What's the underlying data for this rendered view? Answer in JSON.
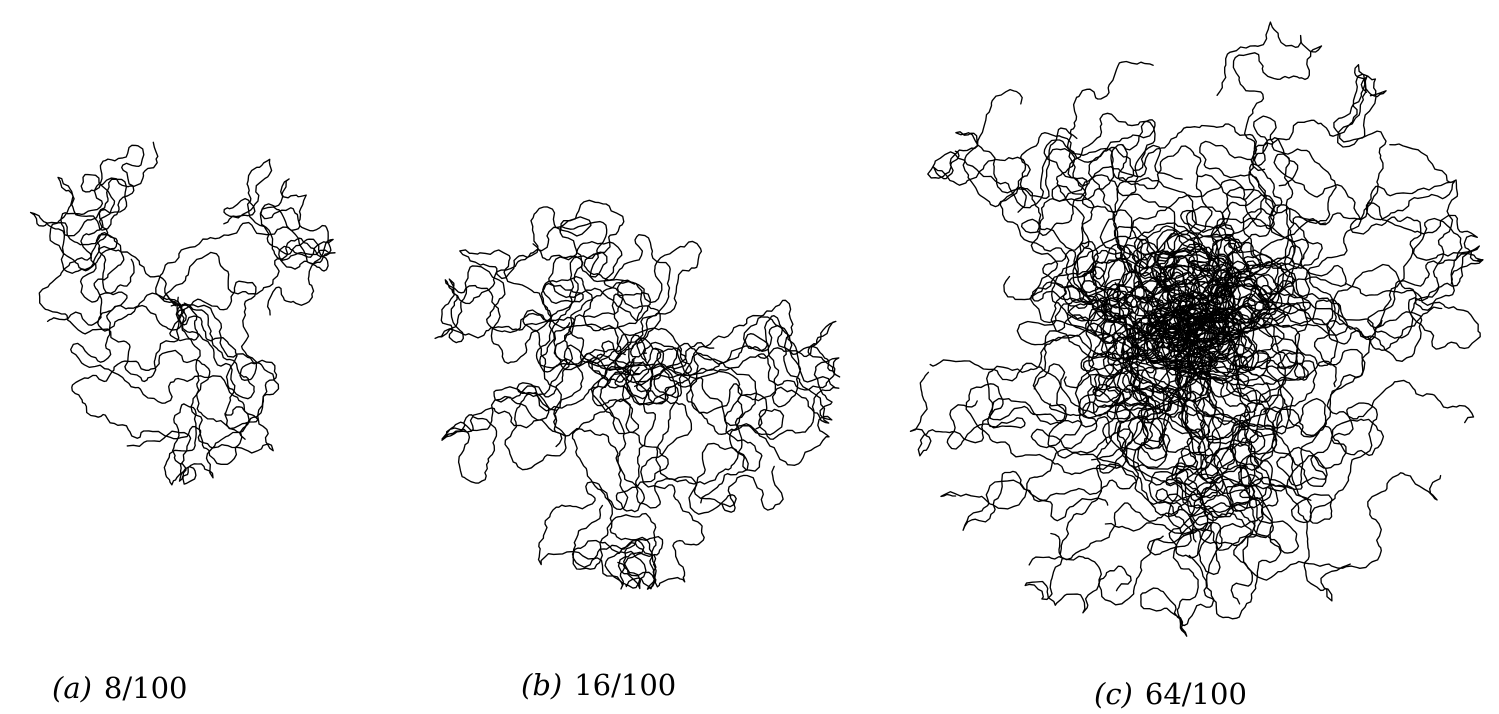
{
  "figure": {
    "panels": [
      {
        "id": "a",
        "letter": "(a)",
        "value": "8/100",
        "walks": 8
      },
      {
        "id": "b",
        "letter": "(b)",
        "value": "16/100",
        "walks": 16
      },
      {
        "id": "c",
        "letter": "(c)",
        "value": "64/100",
        "walks": 64
      }
    ]
  },
  "colors": {
    "stroke": "#000000",
    "background": "#ffffff"
  }
}
